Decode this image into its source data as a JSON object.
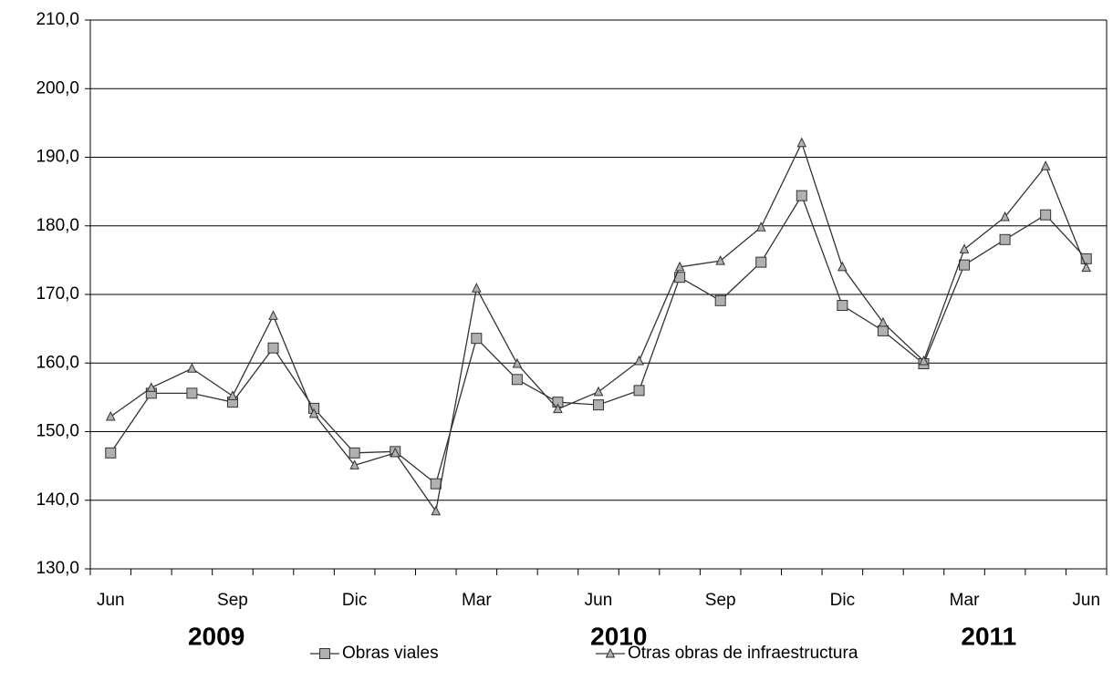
{
  "chart_data": {
    "type": "line",
    "categories": [
      "Jun",
      null,
      null,
      "Sep",
      null,
      null,
      "Dic",
      null,
      null,
      "Mar",
      null,
      null,
      "Jun",
      null,
      null,
      "Sep",
      null,
      null,
      "Dic",
      null,
      null,
      "Mar",
      null,
      null,
      "Jun"
    ],
    "year_labels": [
      "2009",
      "2010",
      "2011"
    ],
    "series": [
      {
        "name": "Obras viales",
        "color": "#333333",
        "marker": "square",
        "marker_color": "#b0b0b0",
        "values": [
          146.9,
          155.6,
          155.6,
          154.3,
          162.2,
          153.4,
          146.9,
          147.1,
          142.4,
          163.6,
          157.6,
          154.3,
          153.9,
          156.0,
          172.5,
          169.1,
          174.7,
          184.4,
          168.4,
          164.7,
          159.9,
          174.3,
          178.0,
          181.6,
          175.2
        ]
      },
      {
        "name": "Otras obras de infraestructura",
        "color": "#333333",
        "marker": "triangle",
        "marker_color": "#b0b0b0",
        "values": [
          152.2,
          156.4,
          159.2,
          155.2,
          166.9,
          152.6,
          145.1,
          146.9,
          138.4,
          170.9,
          159.9,
          153.3,
          155.8,
          160.3,
          174.0,
          174.9,
          179.8,
          192.1,
          174.0,
          165.9,
          160.3,
          176.6,
          181.3,
          188.7,
          173.9
        ]
      }
    ],
    "ylim": [
      130,
      210
    ],
    "yticks": [
      {
        "value": 130,
        "label": "130,0"
      },
      {
        "value": 140,
        "label": "140,0"
      },
      {
        "value": 150,
        "label": "150,0"
      },
      {
        "value": 160,
        "label": "160,0"
      },
      {
        "value": 170,
        "label": "170,0"
      },
      {
        "value": 180,
        "label": "180,0"
      },
      {
        "value": 190,
        "label": "190,0"
      },
      {
        "value": 200,
        "label": "200,0"
      },
      {
        "value": 210,
        "label": "210,0"
      }
    ],
    "grid": true
  }
}
